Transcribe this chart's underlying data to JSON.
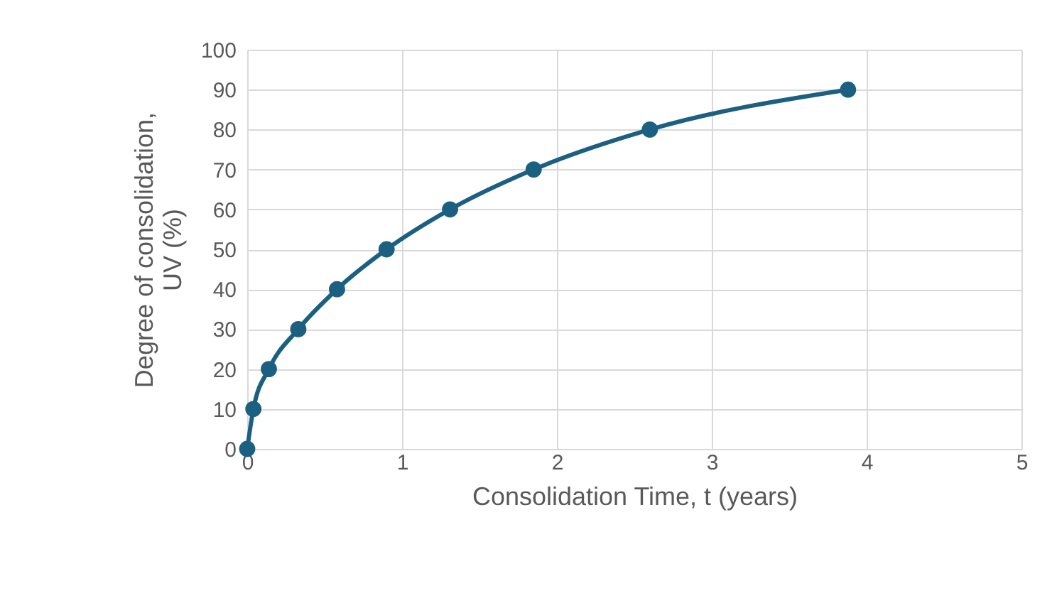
{
  "chart_data": {
    "type": "line",
    "xlabel": "Consolidation Time, t (years)",
    "ylabel": "Degree of consolidation,\nUV (%)",
    "x": [
      0,
      0.04,
      0.14,
      0.33,
      0.58,
      0.9,
      1.31,
      1.85,
      2.6,
      3.88
    ],
    "series": [
      {
        "color": "#1b5f81",
        "values": [
          0,
          10,
          20,
          30,
          40,
          50,
          60,
          70,
          80,
          90
        ]
      }
    ],
    "xlim": [
      0,
      5
    ],
    "xticks": [
      0,
      1,
      2,
      3,
      4,
      5
    ],
    "ylim": [
      0,
      100
    ],
    "yticks": [
      0,
      10,
      20,
      30,
      40,
      50,
      60,
      70,
      80,
      90,
      100
    ],
    "grid": true,
    "marker": "circle",
    "line_style": "solid"
  }
}
